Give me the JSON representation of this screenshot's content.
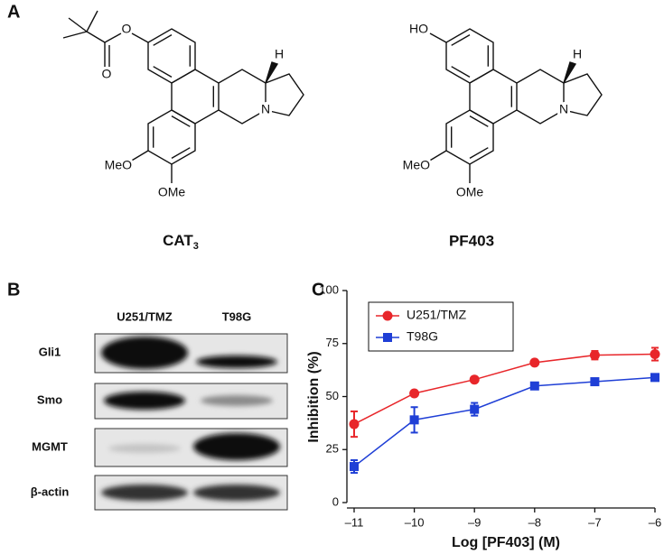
{
  "panel_labels": [
    "A",
    "B",
    "C"
  ],
  "structures": [
    {
      "name": "CAT",
      "subscript": "3",
      "atom_labels": [
        "O",
        "O",
        "H",
        "N",
        "MeO",
        "OMe"
      ]
    },
    {
      "name": "PF403",
      "atom_labels": [
        "HO",
        "H",
        "N",
        "MeO",
        "OMe"
      ]
    }
  ],
  "blot": {
    "columns": [
      "U251/TMZ",
      "T98G"
    ],
    "rows": [
      "Gli1",
      "Smo",
      "MGMT",
      "β-actin"
    ]
  },
  "chart_data": {
    "type": "line",
    "xlabel": "Log [PF403] (M)",
    "ylabel": "Inhibition (%)",
    "x": [
      -11,
      -10,
      -9,
      -8,
      -7,
      -6
    ],
    "series": [
      {
        "name": "U251/TMZ",
        "color": "#e8262a",
        "marker": "circle",
        "values": [
          37,
          51.5,
          58,
          66,
          69.5,
          70
        ],
        "errors": [
          6,
          1,
          1,
          1,
          2,
          3
        ]
      },
      {
        "name": "T98G",
        "color": "#1f3fd6",
        "marker": "square",
        "values": [
          17,
          39,
          44,
          55,
          57,
          59
        ],
        "errors": [
          3,
          6,
          3,
          1,
          1,
          1
        ]
      }
    ],
    "xlim": [
      -11,
      -6
    ],
    "xticks": [
      {
        "value": -11,
        "label": "–11"
      },
      {
        "value": -10,
        "label": "–10"
      },
      {
        "value": -9,
        "label": "–9"
      },
      {
        "value": -8,
        "label": "–8"
      },
      {
        "value": -7,
        "label": "–7"
      },
      {
        "value": -6,
        "label": "–6"
      }
    ],
    "ylim": [
      0,
      100
    ],
    "yticks": [
      0,
      25,
      50,
      75,
      100
    ],
    "legend": "upper left"
  }
}
